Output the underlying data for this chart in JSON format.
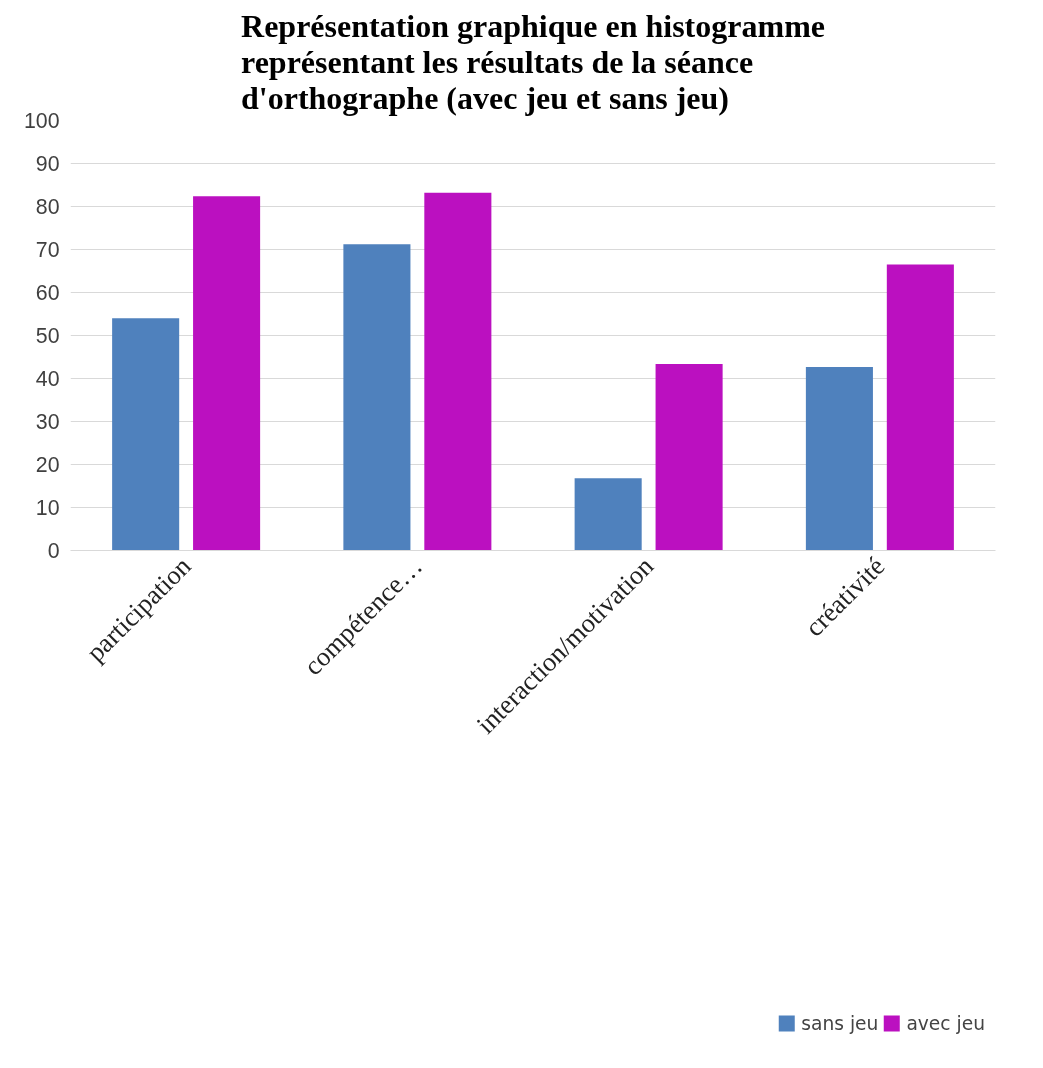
{
  "chart_data": {
    "type": "bar",
    "title": "Représentation graphique en histogramme représentant les résultats de la séance d'orthographe (avec jeu et sans jeu)",
    "categories": [
      "participation",
      "compétence…",
      "interaction/motivation",
      "créativité"
    ],
    "series": [
      {
        "name": "sans jeu",
        "color": "#4f81bd",
        "values": [
          54.0,
          71.2,
          16.8,
          42.7
        ]
      },
      {
        "name": "avec jeu",
        "color": "#bb10c0",
        "values": [
          82.4,
          83.2,
          43.4,
          66.5
        ]
      }
    ],
    "ylim": [
      0,
      100
    ],
    "yticks": [
      0,
      10,
      20,
      30,
      40,
      50,
      60,
      70,
      80,
      90,
      100
    ],
    "grid": "y",
    "legend": "bottom"
  }
}
